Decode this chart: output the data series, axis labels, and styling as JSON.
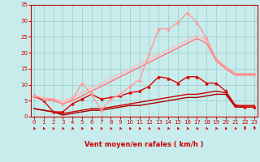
{
  "title": "",
  "xlabel": "Vent moyen/en rafales ( km/h )",
  "x": [
    0,
    1,
    2,
    3,
    4,
    5,
    6,
    7,
    8,
    9,
    10,
    11,
    12,
    13,
    14,
    15,
    16,
    17,
    18,
    19,
    20,
    21,
    22,
    23
  ],
  "lines": [
    {
      "comment": "dark red with markers - jagged medium line",
      "y": [
        6.5,
        5.0,
        1.5,
        1.5,
        4.0,
        5.5,
        7.0,
        5.5,
        6.0,
        6.5,
        7.5,
        8.0,
        9.5,
        12.5,
        12.0,
        10.5,
        12.5,
        12.5,
        10.5,
        10.5,
        8.0,
        3.5,
        3.0,
        3.0
      ],
      "color": "#dd0000",
      "lw": 1.0,
      "marker": "^",
      "ms": 2.0
    },
    {
      "comment": "dark red plain - lower gradual line",
      "y": [
        2.5,
        2.0,
        1.5,
        1.0,
        1.5,
        2.0,
        2.5,
        2.5,
        3.0,
        3.5,
        4.0,
        4.5,
        5.0,
        5.5,
        6.0,
        6.5,
        7.0,
        7.0,
        7.5,
        8.0,
        7.5,
        3.5,
        3.5,
        3.5
      ],
      "color": "#cc0000",
      "lw": 1.0,
      "marker": null,
      "ms": 0
    },
    {
      "comment": "dark red plain - lowest gradual line",
      "y": [
        2.5,
        2.0,
        1.5,
        0.5,
        1.0,
        1.5,
        2.0,
        2.0,
        2.5,
        3.0,
        3.5,
        3.5,
        4.0,
        4.5,
        5.0,
        5.5,
        6.0,
        6.0,
        6.5,
        7.0,
        7.0,
        3.0,
        3.0,
        3.0
      ],
      "color": "#aa0000",
      "lw": 1.0,
      "marker": null,
      "ms": 0
    },
    {
      "comment": "light pink with markers - highest line peaking ~33",
      "y": [
        6.5,
        5.5,
        5.5,
        4.0,
        5.5,
        10.5,
        7.0,
        2.0,
        5.5,
        7.0,
        9.5,
        11.5,
        19.5,
        27.5,
        27.5,
        29.5,
        32.5,
        29.5,
        24.5,
        18.0,
        15.5,
        13.5,
        13.5,
        13.5
      ],
      "color": "#ff9999",
      "lw": 1.0,
      "marker": "^",
      "ms": 2.0
    },
    {
      "comment": "medium pink - upper envelope line straight",
      "y": [
        6.5,
        6.0,
        5.5,
        5.0,
        6.0,
        7.5,
        9.0,
        10.5,
        12.0,
        13.5,
        15.0,
        16.5,
        18.0,
        19.5,
        21.0,
        22.5,
        24.0,
        25.5,
        24.0,
        18.0,
        15.5,
        13.5,
        13.5,
        13.5
      ],
      "color": "#ffbbbb",
      "lw": 1.0,
      "marker": null,
      "ms": 0
    },
    {
      "comment": "medium pink - lower envelope line straight",
      "y": [
        6.0,
        5.5,
        5.0,
        4.5,
        5.5,
        6.5,
        8.0,
        9.5,
        11.0,
        12.5,
        14.0,
        15.5,
        17.0,
        18.5,
        20.0,
        21.5,
        23.0,
        24.5,
        23.0,
        17.5,
        15.0,
        13.0,
        13.0,
        13.0
      ],
      "color": "#ffcccc",
      "lw": 1.0,
      "marker": null,
      "ms": 0
    },
    {
      "comment": "darker pink line - mid straight ascending",
      "y": [
        6.0,
        5.5,
        5.0,
        4.0,
        5.0,
        6.5,
        8.0,
        9.5,
        11.0,
        12.5,
        14.0,
        15.5,
        17.0,
        18.5,
        20.0,
        21.5,
        23.0,
        24.5,
        23.0,
        17.5,
        15.0,
        13.0,
        13.0,
        13.0
      ],
      "color": "#ff7777",
      "lw": 1.0,
      "marker": null,
      "ms": 0
    }
  ],
  "ylim": [
    0,
    35
  ],
  "yticks": [
    0,
    5,
    10,
    15,
    20,
    25,
    30,
    35
  ],
  "xlim": [
    -0.3,
    23.3
  ],
  "xticks": [
    0,
    1,
    2,
    3,
    4,
    5,
    6,
    7,
    8,
    9,
    10,
    11,
    12,
    13,
    14,
    15,
    16,
    17,
    18,
    19,
    20,
    21,
    22,
    23
  ],
  "bg_color": "#c8ecec",
  "grid_color": "#99cccc",
  "tick_color": "#cc0000",
  "label_color": "#cc0000",
  "arrow_color": "#cc0000",
  "arrow_angles": [
    225,
    225,
    225,
    225,
    225,
    225,
    225,
    225,
    225,
    225,
    225,
    225,
    225,
    225,
    225,
    225,
    225,
    225,
    225,
    225,
    225,
    225,
    270,
    270
  ]
}
